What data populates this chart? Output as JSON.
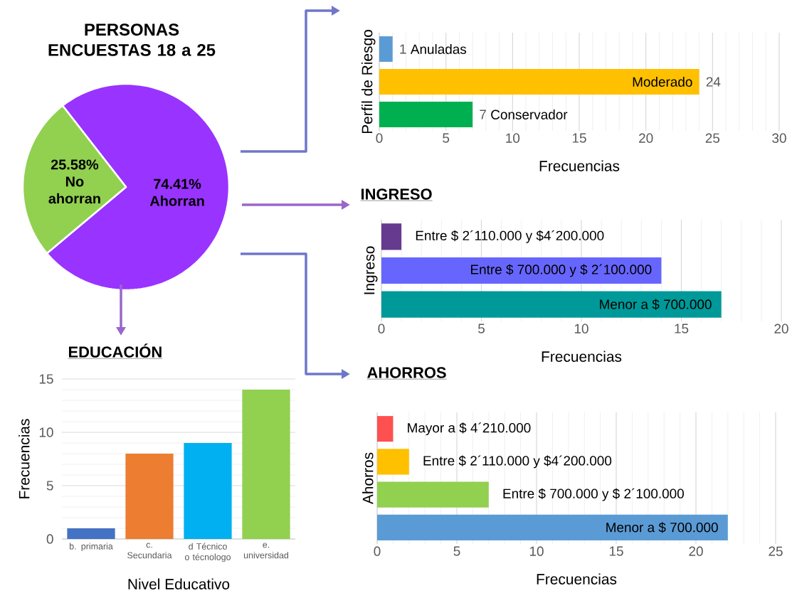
{
  "chart_data": [
    {
      "type": "pie",
      "title": "PERSONAS ENCUESTAS 18 a 25",
      "categories": [
        "Ahorran",
        "No ahorran"
      ],
      "values": [
        74.41,
        25.58
      ],
      "colors": [
        "#9933ff",
        "#92d050"
      ],
      "value_labels": [
        "74.41%",
        "25.58%"
      ]
    },
    {
      "type": "bar",
      "orientation": "horizontal",
      "ylabel": "Perfil de Riesgo",
      "xlabel": "Frecuencias",
      "categories": [
        "Anuladas",
        "Moderado",
        "Conservador"
      ],
      "values": [
        1,
        24,
        7
      ],
      "colors": [
        "#5b9bd5",
        "#ffc000",
        "#00b050"
      ],
      "xlim": [
        0,
        30
      ],
      "xticks": [
        0,
        5,
        10,
        15,
        20,
        25,
        30
      ],
      "grid": "x",
      "data_labels": true
    },
    {
      "type": "bar",
      "orientation": "horizontal",
      "title": "INGRESO",
      "ylabel": "Ingreso",
      "xlabel": "Frecuencias",
      "categories": [
        "Entre $ 2´110.000 y $4´200.000",
        "Entre $ 700.000 y  $ 2´100.000",
        "Menor a $ 700.000"
      ],
      "values": [
        1,
        14,
        17
      ],
      "colors": [
        "#663a8e",
        "#6666ff",
        "#009999"
      ],
      "xlim": [
        0,
        20
      ],
      "xticks": [
        0,
        5,
        10,
        15,
        20
      ],
      "grid": "x"
    },
    {
      "type": "bar",
      "title": "EDUCACIÓN",
      "ylabel": "Frecuencias",
      "xlabel": "Nivel Educativo",
      "categories": [
        "b. primaria",
        "c. Secundaria",
        "d  Técnico o técnologo",
        "e. universidad"
      ],
      "values": [
        1,
        8,
        9,
        14
      ],
      "colors": [
        "#4472c4",
        "#ed7d31",
        "#00b0f0",
        "#92d050"
      ],
      "ylim": [
        0,
        15
      ],
      "yticks": [
        0,
        5,
        10,
        15
      ],
      "grid": "y"
    },
    {
      "type": "bar",
      "orientation": "horizontal",
      "title": "AHORROS",
      "ylabel": "Ahorros",
      "xlabel": "Frecuencias",
      "categories": [
        "Mayor a $ 4´210.000",
        "Entre $ 2´110.000 y $4´200.000",
        "Entre $ 700.000 y  $ 2´100.000",
        "Menor a $ 700.000"
      ],
      "values": [
        1,
        2,
        7,
        22
      ],
      "colors": [
        "#ff5050",
        "#ffc000",
        "#92d050",
        "#5b9bd5"
      ],
      "xlim": [
        0,
        25
      ],
      "xticks": [
        0,
        5,
        10,
        15,
        20,
        25
      ],
      "grid": "x"
    }
  ]
}
